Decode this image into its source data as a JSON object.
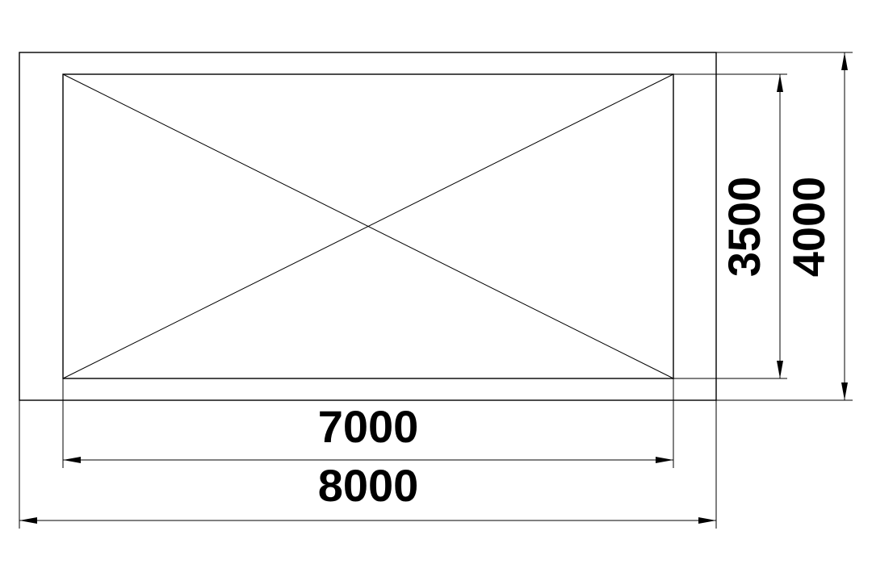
{
  "dimensions": {
    "inner_width_label": "7000",
    "outer_width_label": "8000",
    "inner_height_label": "3500",
    "outer_height_label": "4000"
  },
  "colors": {
    "stroke": "#000000",
    "background": "#ffffff"
  }
}
